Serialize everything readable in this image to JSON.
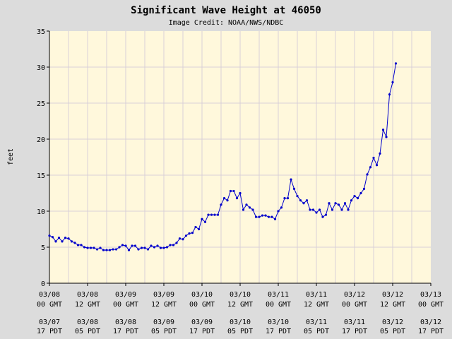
{
  "chart_data": {
    "type": "line",
    "title": "Significant Wave Height at 46050",
    "subtitle": "Image Credit: NOAA/NWS/NDBC",
    "ylabel": "feet",
    "ylim": [
      0,
      35
    ],
    "yticks": [
      0,
      5,
      10,
      15,
      20,
      25,
      30,
      35
    ],
    "xlim": [
      0,
      120
    ],
    "grid": true,
    "colors": {
      "plot_bg": "#fff8dc",
      "line": "#0000cc",
      "grid": "#d8d0d8",
      "page_bg": "#dcdcdc"
    },
    "x_ticks": [
      {
        "x": 0,
        "gmt_date": "03/08",
        "gmt_time": "00 GMT",
        "local_date": "03/07",
        "local_time": "17 PDT"
      },
      {
        "x": 12,
        "gmt_date": "03/08",
        "gmt_time": "12 GMT",
        "local_date": "03/08",
        "local_time": "05 PDT"
      },
      {
        "x": 24,
        "gmt_date": "03/09",
        "gmt_time": "00 GMT",
        "local_date": "03/08",
        "local_time": "17 PDT"
      },
      {
        "x": 36,
        "gmt_date": "03/09",
        "gmt_time": "12 GMT",
        "local_date": "03/09",
        "local_time": "05 PDT"
      },
      {
        "x": 48,
        "gmt_date": "03/10",
        "gmt_time": "00 GMT",
        "local_date": "03/09",
        "local_time": "17 PDT"
      },
      {
        "x": 60,
        "gmt_date": "03/10",
        "gmt_time": "12 GMT",
        "local_date": "03/10",
        "local_time": "05 PDT"
      },
      {
        "x": 72,
        "gmt_date": "03/11",
        "gmt_time": "00 GMT",
        "local_date": "03/10",
        "local_time": "17 PDT"
      },
      {
        "x": 84,
        "gmt_date": "03/11",
        "gmt_time": "12 GMT",
        "local_date": "03/11",
        "local_time": "05 PDT"
      },
      {
        "x": 96,
        "gmt_date": "03/12",
        "gmt_time": "00 GMT",
        "local_date": "03/11",
        "local_time": "17 PDT"
      },
      {
        "x": 108,
        "gmt_date": "03/12",
        "gmt_time": "12 GMT",
        "local_date": "03/12",
        "local_time": "05 PDT"
      },
      {
        "x": 120,
        "gmt_date": "03/13",
        "gmt_time": "00 GMT",
        "local_date": "03/12",
        "local_time": "17 PDT"
      }
    ],
    "series": [
      {
        "x": [
          0,
          1,
          2,
          3,
          4,
          5,
          6,
          7,
          8,
          9,
          10,
          11,
          12,
          13,
          14,
          15,
          16,
          17,
          18,
          19,
          20,
          21,
          22,
          23,
          24,
          25,
          26,
          27,
          28,
          29,
          30,
          31,
          32,
          33,
          34,
          35,
          36,
          37,
          38,
          39,
          40,
          41,
          42,
          43,
          44,
          45,
          46,
          47,
          48,
          49,
          50,
          51,
          52,
          53,
          54,
          55,
          56,
          57,
          58,
          59,
          60,
          61,
          62,
          63,
          64,
          65,
          66,
          67,
          68,
          69,
          70,
          71,
          72,
          73,
          74,
          75,
          76,
          77,
          78,
          79,
          80,
          81,
          82,
          83,
          84,
          85,
          86,
          87,
          88,
          89,
          90,
          91,
          92,
          93,
          94,
          95,
          96,
          97,
          98,
          99,
          100,
          101,
          102,
          103,
          104,
          105,
          106,
          107,
          108,
          109
        ],
        "y": [
          6.6,
          6.4,
          5.8,
          6.3,
          5.8,
          6.3,
          6.2,
          5.8,
          5.6,
          5.3,
          5.3,
          5.0,
          4.9,
          4.9,
          4.9,
          4.7,
          4.9,
          4.6,
          4.6,
          4.6,
          4.7,
          4.7,
          5.0,
          5.3,
          5.2,
          4.6,
          5.2,
          5.2,
          4.7,
          4.9,
          4.9,
          4.7,
          5.2,
          5.0,
          5.2,
          4.9,
          4.9,
          5.0,
          5.3,
          5.3,
          5.6,
          6.2,
          6.1,
          6.6,
          6.9,
          7.0,
          7.8,
          7.5,
          8.9,
          8.5,
          9.5,
          9.5,
          9.5,
          9.5,
          10.9,
          11.8,
          11.5,
          12.8,
          12.8,
          11.8,
          12.5,
          10.2,
          10.9,
          10.5,
          10.2,
          9.2,
          9.2,
          9.4,
          9.4,
          9.2,
          9.2,
          8.9,
          10.0,
          10.5,
          11.8,
          11.8,
          14.4,
          13.1,
          12.1,
          11.5,
          11.1,
          11.5,
          10.2,
          10.2,
          9.8,
          10.2,
          9.2,
          9.5,
          11.1,
          10.2,
          11.1,
          10.9,
          10.2,
          11.1,
          10.2,
          11.5,
          12.1,
          11.8,
          12.5,
          13.1,
          15.1,
          16.1,
          17.4,
          16.4,
          18.0,
          21.3,
          20.3,
          26.2,
          27.9,
          30.5
        ]
      }
    ]
  }
}
